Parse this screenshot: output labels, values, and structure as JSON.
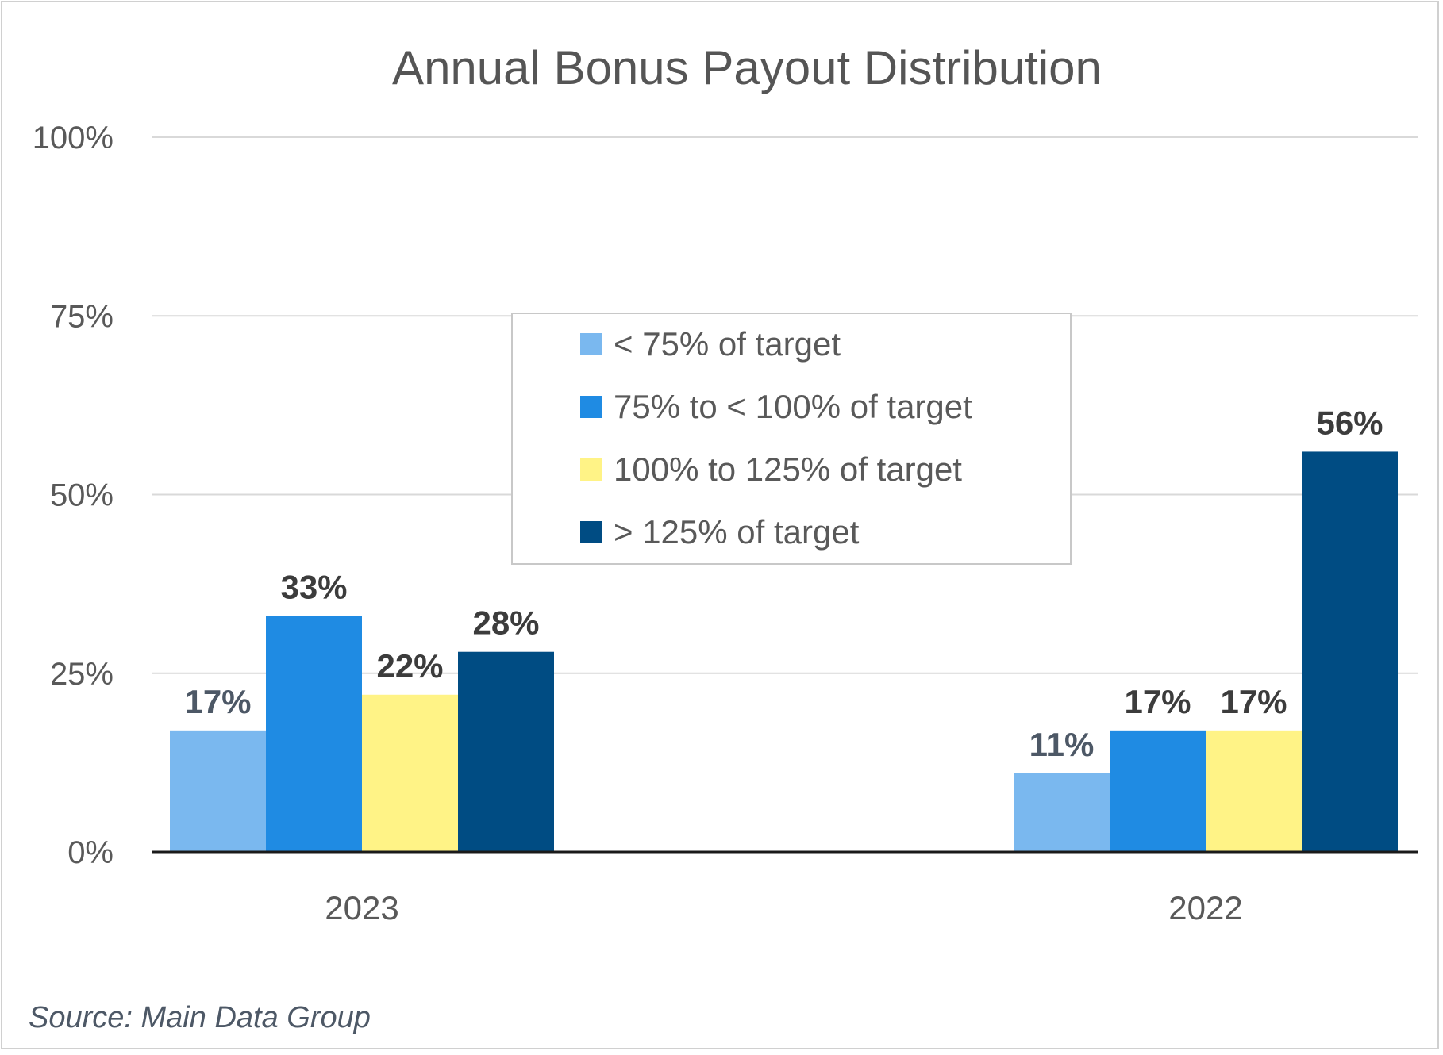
{
  "chart_data": {
    "type": "bar",
    "title": "Annual Bonus Payout Distribution",
    "categories": [
      "2023",
      "2022"
    ],
    "series": [
      {
        "name": "< 75% of target",
        "color": "#7ab8ef",
        "values": [
          17,
          11
        ],
        "labels": [
          "17%",
          "11%"
        ],
        "label_color": "#4d5866"
      },
      {
        "name": "75% to < 100% of target",
        "color": "#1f8be3",
        "values": [
          33,
          17
        ],
        "labels": [
          "33%",
          "17%"
        ],
        "label_color": "#3c3c3c"
      },
      {
        "name": "100% to 125% of target",
        "color": "#fff386",
        "values": [
          22,
          17
        ],
        "labels": [
          "22%",
          "17%"
        ],
        "label_color": "#3c3c3c"
      },
      {
        "name": "> 125% of target",
        "color": "#004c83",
        "values": [
          28,
          56
        ],
        "labels": [
          "28%",
          "56%"
        ],
        "label_color": "#3c3c3c"
      }
    ],
    "ylim": [
      0,
      100
    ],
    "yticks": [
      0,
      25,
      50,
      75,
      100
    ],
    "ytick_labels": [
      "0%",
      "25%",
      "50%",
      "75%",
      "100%"
    ],
    "xlabel": "",
    "ylabel": "",
    "grid": true,
    "legend_position": "center-top"
  },
  "source": "Source: Main Data Group"
}
